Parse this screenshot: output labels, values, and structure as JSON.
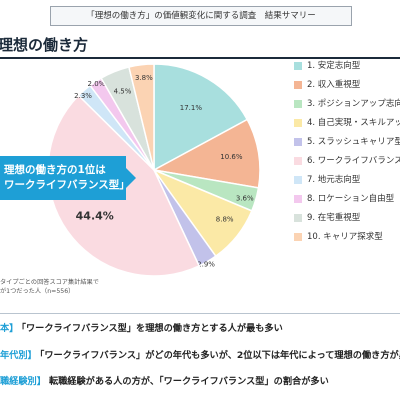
{
  "header": {
    "title": "「理想の働き方」の価値観変化に関する調査　結果サマリー"
  },
  "section": {
    "title": "理想の働き方"
  },
  "callout": {
    "line1": "理想の働き方の1位は",
    "line2": "ワークライフバランス型」"
  },
  "note": {
    "line1": "タイプごとの回答スコア集計結果で",
    "line2": "が1つだった人（n=556）"
  },
  "chart_data": {
    "type": "pie",
    "title": "",
    "slices": [
      {
        "label": "1. 安定志向型",
        "value": 17.1,
        "color": "#a8dfde"
      },
      {
        "label": "2. 収入重視型",
        "value": 10.6,
        "color": "#f4b594"
      },
      {
        "label": "3. ポジションアップ志向型",
        "value": 3.6,
        "color": "#b9e6c1"
      },
      {
        "label": "4. 自己実現・スキルアップ",
        "value": 8.8,
        "color": "#fbe9a6"
      },
      {
        "label": "5. スラッシュキャリア型",
        "value": 2.9,
        "color": "#c2c2ea"
      },
      {
        "label": "6. ワークライフバランス型",
        "value": 44.4,
        "color": "#fadbe1"
      },
      {
        "label": "7. 地元志向型",
        "value": 2.3,
        "color": "#cfe6f7"
      },
      {
        "label": "8. ロケーション自由型",
        "value": 2.0,
        "color": "#f3c8ee"
      },
      {
        "label": "9. 在宅重視型",
        "value": 4.5,
        "color": "#d8e2dc"
      },
      {
        "label": "10. キャリア探求型",
        "value": 3.8,
        "color": "#fbd3b3"
      }
    ],
    "data_labels": [
      "17.1%",
      "10.6%",
      "3.6%",
      "8.8%",
      "2.9%",
      "44.4%",
      "2.3%",
      "2.0%",
      "4.5%",
      "3.8%"
    ]
  },
  "findings": [
    {
      "tag": "本】",
      "text": "「ワークライフバランス型」を理想の働き方とする人が最も多い"
    },
    {
      "tag": "年代別】",
      "text": "「ワークライフバランス」がどの年代も多いが、2位以下は年代によって理想の働き方が異"
    },
    {
      "tag": "職経験別】",
      "text": "転職経験がある人の方が、「ワークライフバランス型」の割合が多い"
    }
  ]
}
